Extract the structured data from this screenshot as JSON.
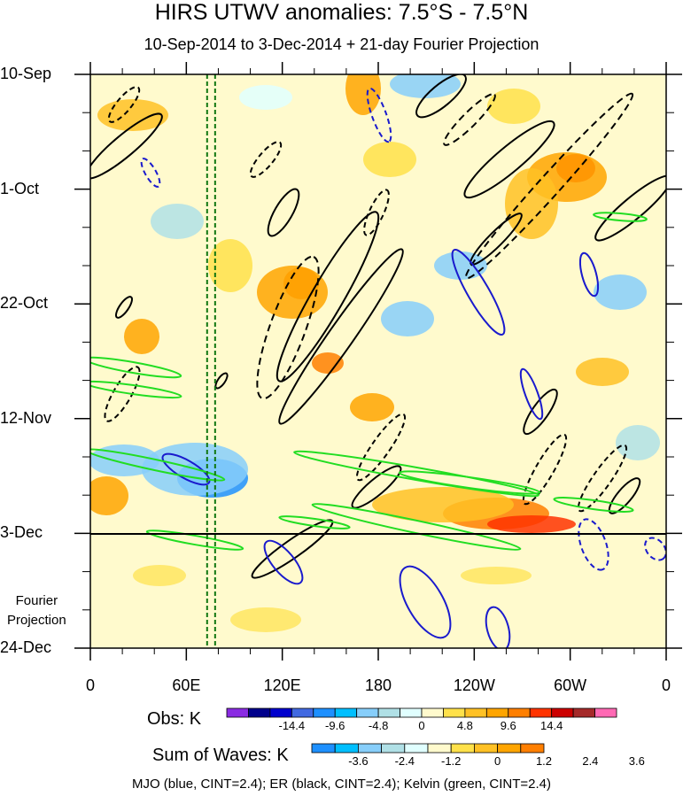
{
  "chart_data": {
    "type": "heatmap",
    "title": "HIRS UTWV anomalies: 7.5°S - 7.5°N",
    "subtitle": "10-Sep-2014 to 3-Dec-2014 + 21-day Fourier Projection",
    "y_axis": {
      "ticks": [
        "10-Sep",
        "1-Oct",
        "22-Oct",
        "12-Nov",
        "3-Dec",
        "24-Dec"
      ],
      "range": [
        "10-Sep-2014",
        "24-Dec-2014"
      ],
      "direction": "time increases downward"
    },
    "x_axis": {
      "ticks": [
        "0",
        "60E",
        "120E",
        "180",
        "120W",
        "60W",
        "0"
      ],
      "range_deg_east": [
        0,
        360
      ]
    },
    "projection_label": [
      "Fourier",
      "Projection"
    ],
    "projection_start": "3-Dec",
    "reference_lines_lon": [
      73,
      78
    ],
    "obs_colorbar": {
      "label": "Obs: K",
      "tick_labels": [
        "-14.4",
        "-9.6",
        "-4.8",
        "0",
        "4.8",
        "9.6",
        "14.4"
      ],
      "colors": [
        "#8a2be2",
        "#00008b",
        "#0000cd",
        "#4169e1",
        "#1e90ff",
        "#00bfff",
        "#87cefa",
        "#b0e0e6",
        "#e0ffff",
        "#fffacd",
        "#ffe14a",
        "#ffc125",
        "#ffa500",
        "#ff7f00",
        "#ff3300",
        "#cc0000",
        "#a52a2a",
        "#ff69b4"
      ]
    },
    "waves_colorbar": {
      "label": "Sum of Waves: K",
      "tick_labels": [
        "-3.6",
        "-2.4",
        "-1.2",
        "0",
        "1.2",
        "2.4",
        "3.6"
      ],
      "colors": [
        "#1e90ff",
        "#00bfff",
        "#87cefa",
        "#b0e0e6",
        "#e0ffff",
        "#fffacd",
        "#ffe14a",
        "#ffc125",
        "#ffa500",
        "#ff7f00"
      ]
    },
    "contours": {
      "legend": "MJO (blue, CINT=2.4); ER (black, CINT=2.4); Kelvin (green, CINT=2.4)",
      "mjo_color": "#1a1acd",
      "er_color": "#000000",
      "kelvin_color": "#22dd22",
      "ref_line_color": "#117711"
    }
  }
}
